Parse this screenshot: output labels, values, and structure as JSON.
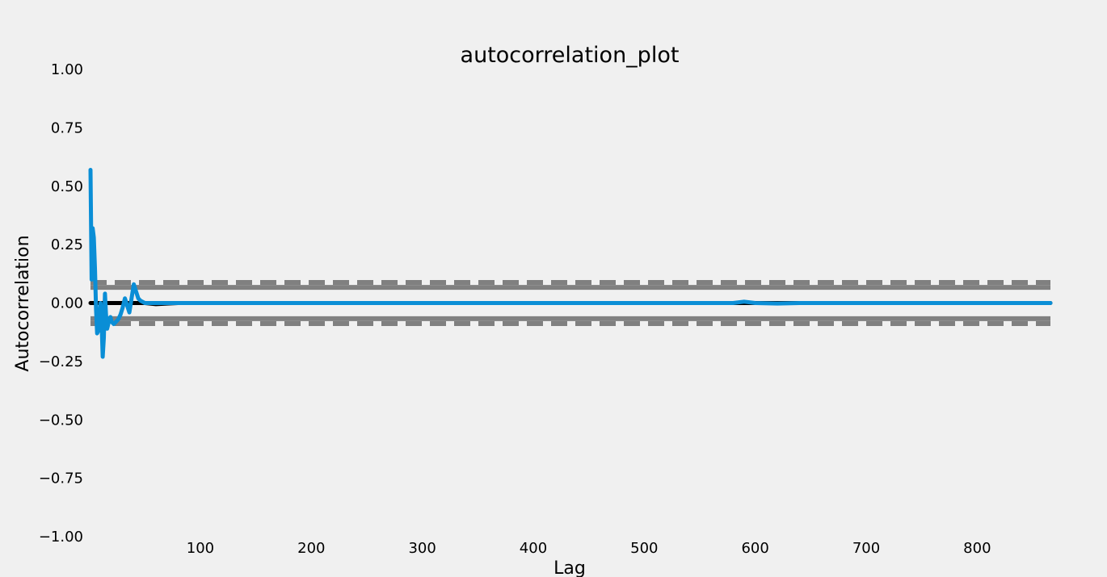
{
  "chart_data": {
    "type": "line",
    "title": "autocorrelation_plot",
    "xlabel": "Lag",
    "ylabel": "Autocorrelation",
    "xlim": [
      1,
      866
    ],
    "ylim": [
      -1.0,
      1.0
    ],
    "grid": false,
    "x_ticks": [
      100,
      200,
      300,
      400,
      500,
      600,
      700,
      800
    ],
    "y_ticks": [
      1.0,
      0.75,
      0.5,
      0.25,
      0.0,
      -0.25,
      -0.5,
      -0.75,
      -1.0
    ],
    "x_tick_labels": [
      "100",
      "200",
      "300",
      "400",
      "500",
      "600",
      "700",
      "800"
    ],
    "y_tick_labels": [
      "1.00",
      "0.75",
      "0.50",
      "0.25",
      "0.00",
      "−0.25",
      "−0.50",
      "−0.75",
      "−1.00"
    ],
    "confidence_bands": {
      "solid": [
        0.067,
        -0.067
      ],
      "dashed": [
        0.088,
        -0.088
      ]
    },
    "zero_line": 0.0,
    "series": [
      {
        "color": "#0a8ed6",
        "x": [
          1,
          2,
          3,
          4,
          5,
          6,
          7,
          8,
          9,
          10,
          11,
          12,
          13,
          14,
          15,
          16,
          17,
          18,
          19,
          20,
          22,
          24,
          26,
          28,
          30,
          32,
          34,
          36,
          38,
          40,
          42,
          44,
          46,
          48,
          50,
          55,
          60,
          70,
          80,
          100,
          150,
          200,
          300,
          400,
          500,
          580,
          590,
          600,
          620,
          640,
          660,
          700,
          800,
          866
        ],
        "y": [
          0.57,
          0.1,
          0.32,
          0.28,
          0.15,
          -0.03,
          -0.13,
          -0.12,
          -0.05,
          0.0,
          -0.08,
          -0.23,
          -0.15,
          0.04,
          -0.05,
          -0.11,
          -0.09,
          -0.07,
          -0.06,
          -0.08,
          -0.09,
          -0.08,
          -0.07,
          -0.05,
          -0.02,
          0.02,
          -0.01,
          -0.04,
          0.02,
          0.08,
          0.05,
          0.02,
          0.01,
          0.005,
          0.0,
          0.0,
          0.0,
          0.0,
          0.0,
          0.0,
          0.0,
          0.0,
          0.0,
          0.0,
          0.0,
          0.0,
          0.006,
          0.0,
          -0.002,
          0.0,
          0.0,
          0.0,
          0.0,
          0.0
        ]
      },
      {
        "color": "#000000",
        "x": [
          1,
          5,
          10,
          20,
          30,
          40,
          50,
          60,
          70,
          80,
          866
        ],
        "y": [
          0.0,
          0.0,
          0.0,
          0.0,
          0.0,
          0.0,
          0.0,
          -0.005,
          -0.002,
          0.0,
          0.0
        ]
      }
    ]
  }
}
